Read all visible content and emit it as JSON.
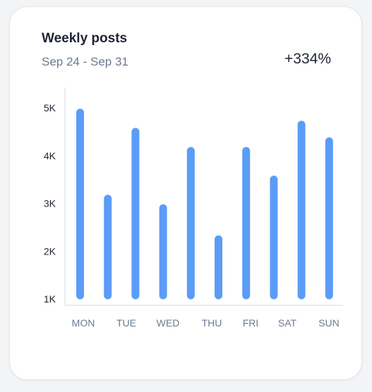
{
  "card": {
    "title": "Weekly posts",
    "subtitle": "Sep 24 - Sep 31",
    "change": "+334%"
  },
  "colors": {
    "bar": "#5b9cf8",
    "axis": "#e3e6ea"
  },
  "chart_data": {
    "type": "bar",
    "title": "Weekly posts",
    "subtitle": "Sep 24 - Sep 31",
    "xlabel": "",
    "ylabel": "",
    "categories": [
      "MON",
      "TUE",
      "TUE",
      "WED",
      "WED",
      "THU",
      "FRI",
      "FRI",
      "SAT",
      "SUN"
    ],
    "values": [
      4900,
      3100,
      4500,
      2900,
      4100,
      2250,
      4100,
      3500,
      4650,
      4300
    ],
    "x_tick_labels": [
      "MON",
      "TUE",
      "WED",
      "THU",
      "FRI",
      "SAT",
      "SUN"
    ],
    "y_tick_labels": [
      "1K",
      "2K",
      "3K",
      "4K",
      "5K"
    ],
    "y_ticks": [
      1000,
      2000,
      3000,
      4000,
      5000
    ],
    "ylim": [
      1000,
      5000
    ],
    "grid": false,
    "legend": "none"
  }
}
